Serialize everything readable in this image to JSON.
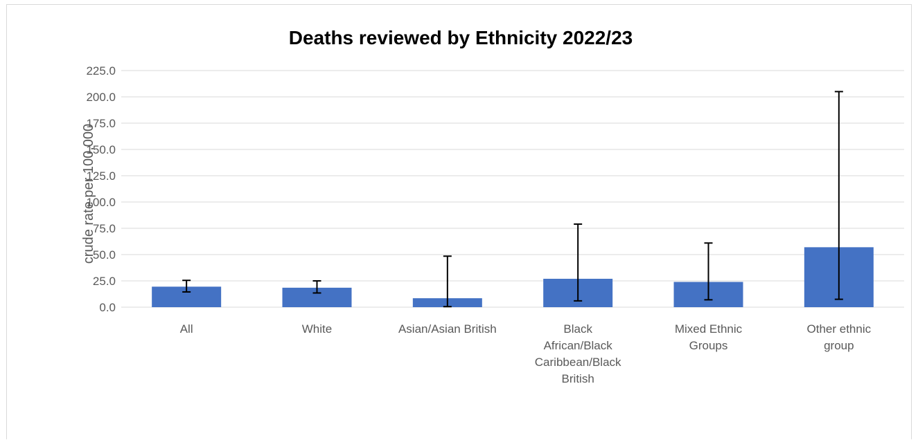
{
  "chart_data": {
    "type": "bar",
    "title": "Deaths reviewed by Ethnicity 2022/23",
    "ylabel": "crude rate per 100,000",
    "xlabel": "",
    "ylim": [
      0,
      225
    ],
    "yticks": [
      "0.0",
      "25.0",
      "50.0",
      "75.0",
      "100.0",
      "125.0",
      "150.0",
      "175.0",
      "200.0",
      "225.0"
    ],
    "grid": true,
    "colors": {
      "bar": "#4472c4",
      "error_bar": "#000000"
    },
    "categories": [
      [
        "All"
      ],
      [
        "White"
      ],
      [
        "Asian/Asian British"
      ],
      [
        "Black",
        "African/Black",
        "Caribbean/Black",
        "British"
      ],
      [
        "Mixed Ethnic",
        "Groups"
      ],
      [
        "Other ethnic",
        "group"
      ]
    ],
    "values": [
      19.5,
      18.5,
      8.5,
      27.0,
      24.0,
      57.0
    ],
    "error_low": [
      14.5,
      13.5,
      0.5,
      6.0,
      7.0,
      7.5
    ],
    "error_high": [
      25.5,
      25.0,
      48.5,
      79.0,
      61.0,
      205.0
    ]
  }
}
